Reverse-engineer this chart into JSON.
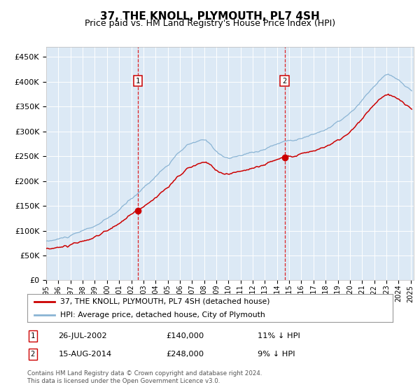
{
  "title": "37, THE KNOLL, PLYMOUTH, PL7 4SH",
  "subtitle": "Price paid vs. HM Land Registry's House Price Index (HPI)",
  "bg_color": "#dce9f5",
  "line1_color": "#cc0000",
  "line2_color": "#8ab4d4",
  "purchase1_price": 140000,
  "purchase2_price": 248000,
  "purchase1_label": "26-JUL-2002",
  "purchase2_label": "15-AUG-2014",
  "purchase1_pct": "11% ↓ HPI",
  "purchase2_pct": "9% ↓ HPI",
  "legend1": "37, THE KNOLL, PLYMOUTH, PL7 4SH (detached house)",
  "legend2": "HPI: Average price, detached house, City of Plymouth",
  "footer": "Contains HM Land Registry data © Crown copyright and database right 2024.\nThis data is licensed under the Open Government Licence v3.0.",
  "ylim_min": 0,
  "ylim_max": 470000,
  "yticks": [
    0,
    50000,
    100000,
    150000,
    200000,
    250000,
    300000,
    350000,
    400000,
    450000
  ],
  "ytick_labels": [
    "£0",
    "£50K",
    "£100K",
    "£150K",
    "£200K",
    "£250K",
    "£300K",
    "£350K",
    "£400K",
    "£450K"
  ],
  "box1_label": "1",
  "box2_label": "2"
}
